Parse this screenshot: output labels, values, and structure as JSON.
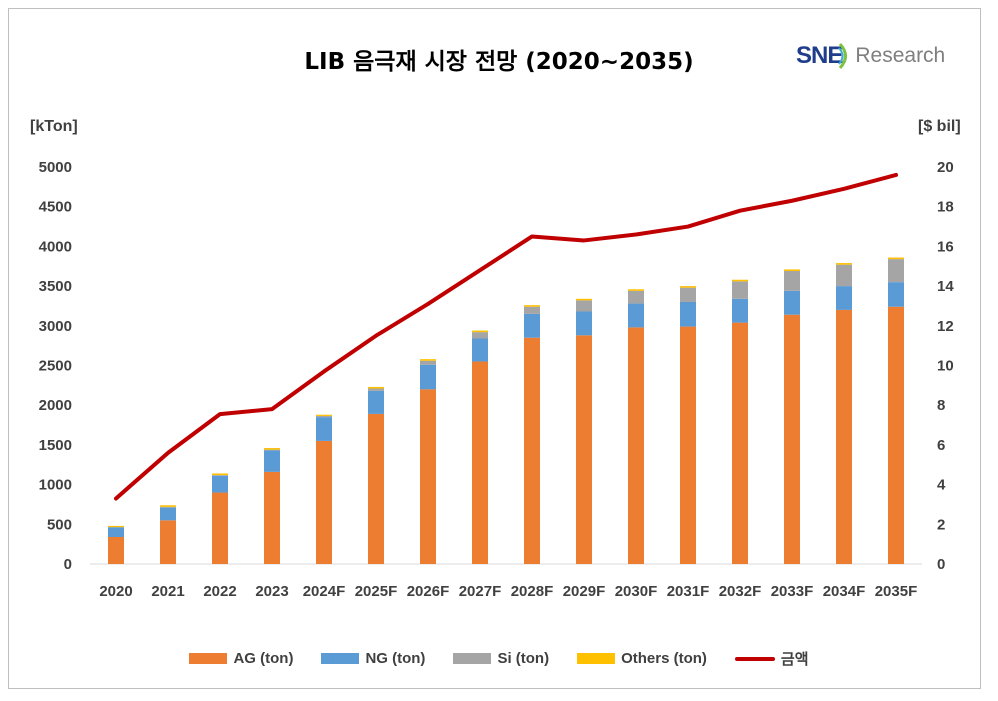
{
  "title": "LIB 음극재 시장 전망 (2020~2035)",
  "logo": {
    "text_bold": "SNE",
    "text": "Research"
  },
  "colors": {
    "AG": "#ED7D31",
    "NG": "#5B9BD5",
    "Si": "#A5A5A5",
    "Others": "#FFC000",
    "line": "#C00000"
  },
  "chart_data": {
    "type": "bar",
    "stacked": true,
    "title": "LIB 음극재 시장 전망 (2020~2035)",
    "ylabel_left": "[kTon]",
    "ylabel_right": "[$ bil]",
    "ylim_left": [
      0,
      5000
    ],
    "ylim_right": [
      0,
      20
    ],
    "yticks_left": [
      0,
      500,
      1000,
      1500,
      2000,
      2500,
      3000,
      3500,
      4000,
      4500,
      5000
    ],
    "yticks_right": [
      0,
      2,
      4,
      6,
      8,
      10,
      12,
      14,
      16,
      18,
      20
    ],
    "grid": false,
    "legend_position": "bottom",
    "categories": [
      "2020",
      "2021",
      "2022",
      "2023",
      "2024F",
      "2025F",
      "2026F",
      "2027F",
      "2028F",
      "2029F",
      "2030F",
      "2031F",
      "2032F",
      "2033F",
      "2034F",
      "2035F"
    ],
    "series": [
      {
        "name": "AG (ton)",
        "type": "bar",
        "axis": "left",
        "values": [
          340,
          550,
          900,
          1160,
          1550,
          1890,
          2200,
          2550,
          2850,
          2880,
          2980,
          2990,
          3040,
          3140,
          3200,
          3240
        ]
      },
      {
        "name": "NG (ton)",
        "type": "bar",
        "axis": "left",
        "values": [
          120,
          160,
          210,
          270,
          300,
          290,
          310,
          290,
          300,
          300,
          300,
          310,
          300,
          300,
          300,
          310
        ]
      },
      {
        "name": "Si (ton)",
        "type": "bar",
        "axis": "left",
        "values": [
          5,
          10,
          10,
          10,
          15,
          30,
          50,
          80,
          90,
          140,
          160,
          180,
          220,
          250,
          270,
          290
        ]
      },
      {
        "name": "Others (ton)",
        "type": "bar",
        "axis": "left",
        "values": [
          15,
          20,
          20,
          20,
          15,
          20,
          20,
          20,
          20,
          20,
          20,
          20,
          20,
          20,
          20,
          20
        ]
      },
      {
        "name": "금액",
        "type": "line",
        "axis": "right",
        "values": [
          3.3,
          5.6,
          7.55,
          7.8,
          9.7,
          11.5,
          13.1,
          14.8,
          16.5,
          16.3,
          16.6,
          17.0,
          17.8,
          18.3,
          18.9,
          19.6
        ]
      }
    ]
  }
}
